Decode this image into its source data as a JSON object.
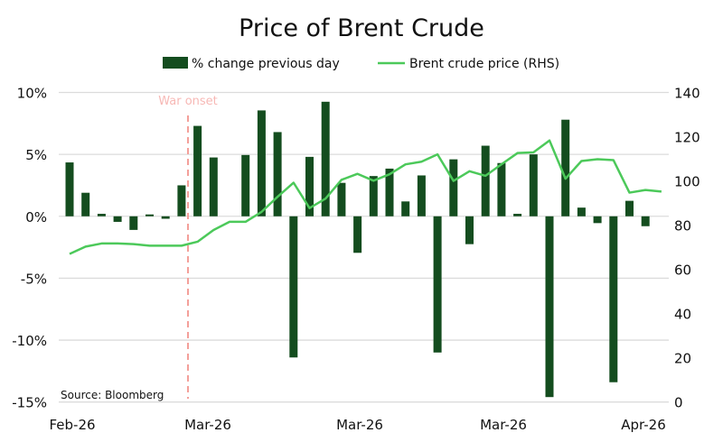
{
  "chart_data": {
    "type": "bar+line",
    "title": "Price of Brent Crude",
    "legend_position": "top",
    "series": [
      {
        "name": "% change previous day",
        "type": "bar",
        "axis": "left",
        "color": "#144d1f",
        "values": [
          4.35,
          1.9,
          0.2,
          -0.45,
          -1.1,
          0.15,
          -0.2,
          2.5,
          7.3,
          4.75,
          0,
          4.95,
          8.55,
          6.8,
          -11.4,
          4.8,
          9.25,
          2.7,
          -2.95,
          3.25,
          3.85,
          1.2,
          3.3,
          -11.0,
          4.6,
          -2.25,
          5.7,
          4.3,
          0.2,
          5.0,
          -14.6,
          7.8,
          0.7,
          -0.55,
          -13.4,
          1.25,
          -0.8
        ]
      },
      {
        "name": "Brent crude price (RHS)",
        "type": "line",
        "axis": "right",
        "color": "#4cc95a",
        "values": [
          67,
          70.3,
          71.7,
          71.7,
          71.4,
          70.7,
          70.7,
          70.7,
          72.5,
          77.8,
          81.5,
          81.5,
          86,
          92.8,
          99.2,
          87.7,
          92,
          100.5,
          103.2,
          100.1,
          103,
          107.5,
          108.7,
          112,
          100,
          104.4,
          102.3,
          107.5,
          112.6,
          112.9,
          118.3,
          101,
          109,
          109.8,
          109.4,
          94.7,
          95.9,
          95.2
        ]
      }
    ],
    "x_tick_labels": [
      "Feb-26",
      "Mar-26",
      "Mar-26",
      "Mar-26",
      "Apr-26"
    ],
    "y_left": {
      "ylim": [
        -15,
        10
      ],
      "ticks": [
        "10%",
        "5%",
        "0%",
        "-5%",
        "-10%",
        "-15%"
      ]
    },
    "y_right": {
      "ylim": [
        0,
        140
      ],
      "ticks": [
        "140",
        "120",
        "100",
        "80",
        "60",
        "40",
        "20",
        "0"
      ]
    },
    "annotation": "War onset",
    "source": "Source: Bloomberg",
    "grid": true
  }
}
